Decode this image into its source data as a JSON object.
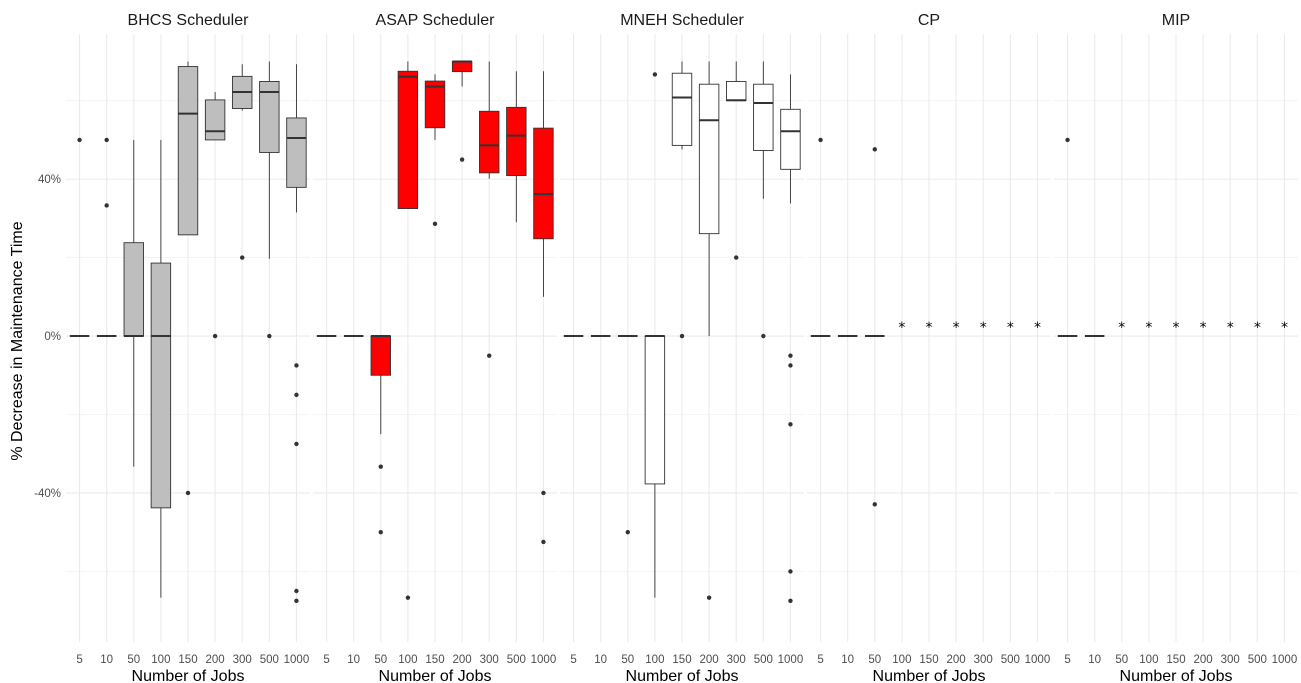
{
  "chart_data": {
    "type": "boxplot",
    "ylabel": "% Decrease in Maintenance Time",
    "xlabel": "Number of Jobs",
    "categories": [
      "5",
      "10",
      "50",
      "100",
      "150",
      "200",
      "300",
      "500",
      "1000"
    ],
    "y_ticks": [
      -40,
      0,
      40
    ],
    "y_tick_labels": [
      "-40%",
      "0%",
      "40%"
    ],
    "ylim": [
      -78,
      77
    ],
    "grid": true,
    "missing_marker": "*",
    "panels": [
      {
        "title": "BHCS Scheduler",
        "fill": "#bebebe",
        "boxes": [
          {
            "x": "5",
            "q1": 0,
            "median": 0,
            "q3": 0,
            "whisker_low": 0,
            "whisker_high": 0,
            "outliers": [
              50
            ]
          },
          {
            "x": "10",
            "q1": 0,
            "median": 0,
            "q3": 0,
            "whisker_low": 0,
            "whisker_high": 0,
            "outliers": [
              50,
              33.3
            ]
          },
          {
            "x": "50",
            "q1": 0,
            "median": 0,
            "q3": 23.8,
            "whisker_low": -33.3,
            "whisker_high": 50,
            "outliers": []
          },
          {
            "x": "100",
            "q1": -43.8,
            "median": 0,
            "q3": 18.6,
            "whisker_low": -66.7,
            "whisker_high": 50,
            "outliers": []
          },
          {
            "x": "150",
            "q1": 25.8,
            "median": 56.7,
            "q3": 68.7,
            "whisker_low": 25.8,
            "whisker_high": 70,
            "outliers": [
              -40
            ]
          },
          {
            "x": "200",
            "q1": 50,
            "median": 52.2,
            "q3": 60.2,
            "whisker_low": 50,
            "whisker_high": 62.2,
            "outliers": [
              0
            ]
          },
          {
            "x": "300",
            "q1": 58,
            "median": 62.2,
            "q3": 66.2,
            "whisker_low": 57.5,
            "whisker_high": 69.3,
            "outliers": [
              20
            ]
          },
          {
            "x": "500",
            "q1": 46.8,
            "median": 62.2,
            "q3": 64.9,
            "whisker_low": 19.7,
            "whisker_high": 70,
            "outliers": [
              0
            ]
          },
          {
            "x": "1000",
            "q1": 37.9,
            "median": 50.5,
            "q3": 55.6,
            "whisker_low": 31.5,
            "whisker_high": 69.3,
            "outliers": [
              -7.5,
              -15,
              -27.5,
              -65,
              -67.5
            ]
          }
        ],
        "missing": []
      },
      {
        "title": "ASAP Scheduler",
        "fill": "#ff0000",
        "boxes": [
          {
            "x": "5",
            "q1": 0,
            "median": 0,
            "q3": 0,
            "whisker_low": 0,
            "whisker_high": 0,
            "outliers": []
          },
          {
            "x": "10",
            "q1": 0,
            "median": 0,
            "q3": 0,
            "whisker_low": 0,
            "whisker_high": 0,
            "outliers": []
          },
          {
            "x": "50",
            "q1": -10,
            "median": 0,
            "q3": 0,
            "whisker_low": -25,
            "whisker_high": 0,
            "outliers": [
              -33.3,
              -50
            ]
          },
          {
            "x": "100",
            "q1": 32.5,
            "median": 66.1,
            "q3": 67.5,
            "whisker_low": 32.5,
            "whisker_high": 70,
            "outliers": [
              -66.7
            ]
          },
          {
            "x": "150",
            "q1": 53.1,
            "median": 63.6,
            "q3": 65,
            "whisker_low": 50,
            "whisker_high": 66.7,
            "outliers": [
              28.6
            ]
          },
          {
            "x": "200",
            "q1": 67.4,
            "median": 70,
            "q3": 70,
            "whisker_low": 63.6,
            "whisker_high": 70,
            "outliers": [
              45
            ]
          },
          {
            "x": "300",
            "q1": 41.6,
            "median": 48.6,
            "q3": 57.3,
            "whisker_low": 40.1,
            "whisker_high": 70,
            "outliers": [
              -5
            ]
          },
          {
            "x": "500",
            "q1": 40.9,
            "median": 51.1,
            "q3": 58.3,
            "whisker_low": 29,
            "whisker_high": 67.5,
            "outliers": []
          },
          {
            "x": "1000",
            "q1": 24.8,
            "median": 36.2,
            "q3": 53,
            "whisker_low": 10,
            "whisker_high": 67.5,
            "outliers": [
              -40,
              -52.5
            ]
          }
        ],
        "missing": []
      },
      {
        "title": "MNEH Scheduler",
        "fill": "#ffffff",
        "boxes": [
          {
            "x": "5",
            "q1": 0,
            "median": 0,
            "q3": 0,
            "whisker_low": 0,
            "whisker_high": 0,
            "outliers": []
          },
          {
            "x": "10",
            "q1": 0,
            "median": 0,
            "q3": 0,
            "whisker_low": 0,
            "whisker_high": 0,
            "outliers": []
          },
          {
            "x": "50",
            "q1": 0,
            "median": 0,
            "q3": 0,
            "whisker_low": 0,
            "whisker_high": 0,
            "outliers": [
              -50
            ]
          },
          {
            "x": "100",
            "q1": -37.7,
            "median": 0,
            "q3": 0,
            "whisker_low": -66.7,
            "whisker_high": 0,
            "outliers": [
              66.7
            ]
          },
          {
            "x": "150",
            "q1": 48.6,
            "median": 60.8,
            "q3": 67,
            "whisker_low": 47.6,
            "whisker_high": 70,
            "outliers": [
              0
            ]
          },
          {
            "x": "200",
            "q1": 26.1,
            "median": 55,
            "q3": 64.2,
            "whisker_low": 0,
            "whisker_high": 70,
            "outliers": [
              -66.7
            ]
          },
          {
            "x": "300",
            "q1": 60,
            "median": 60.1,
            "q3": 64.9,
            "whisker_low": 60,
            "whisker_high": 70,
            "outliers": [
              20
            ]
          },
          {
            "x": "500",
            "q1": 47.3,
            "median": 59.4,
            "q3": 64.2,
            "whisker_low": 35,
            "whisker_high": 70,
            "outliers": [
              0
            ]
          },
          {
            "x": "1000",
            "q1": 42.5,
            "median": 52.2,
            "q3": 57.8,
            "whisker_low": 33.8,
            "whisker_high": 66.7,
            "outliers": [
              -5,
              -7.5,
              -22.5,
              -60,
              -67.5
            ]
          }
        ],
        "missing": []
      },
      {
        "title": "CP",
        "fill": "#ffffff",
        "boxes": [
          {
            "x": "5",
            "q1": 0,
            "median": 0,
            "q3": 0,
            "whisker_low": 0,
            "whisker_high": 0,
            "outliers": [
              50
            ]
          },
          {
            "x": "10",
            "q1": 0,
            "median": 0,
            "q3": 0,
            "whisker_low": 0,
            "whisker_high": 0,
            "outliers": []
          },
          {
            "x": "50",
            "q1": 0,
            "median": 0,
            "q3": 0,
            "whisker_low": 0,
            "whisker_high": 0,
            "outliers": [
              47.6,
              -42.9
            ]
          }
        ],
        "missing": [
          "100",
          "150",
          "200",
          "300",
          "500",
          "1000"
        ]
      },
      {
        "title": "MIP",
        "fill": "#ffffff",
        "boxes": [
          {
            "x": "5",
            "q1": 0,
            "median": 0,
            "q3": 0,
            "whisker_low": 0,
            "whisker_high": 0,
            "outliers": [
              50
            ]
          },
          {
            "x": "10",
            "q1": 0,
            "median": 0,
            "q3": 0,
            "whisker_low": 0,
            "whisker_high": 0,
            "outliers": []
          }
        ],
        "missing": [
          "50",
          "100",
          "150",
          "200",
          "300",
          "500",
          "1000"
        ]
      }
    ]
  }
}
